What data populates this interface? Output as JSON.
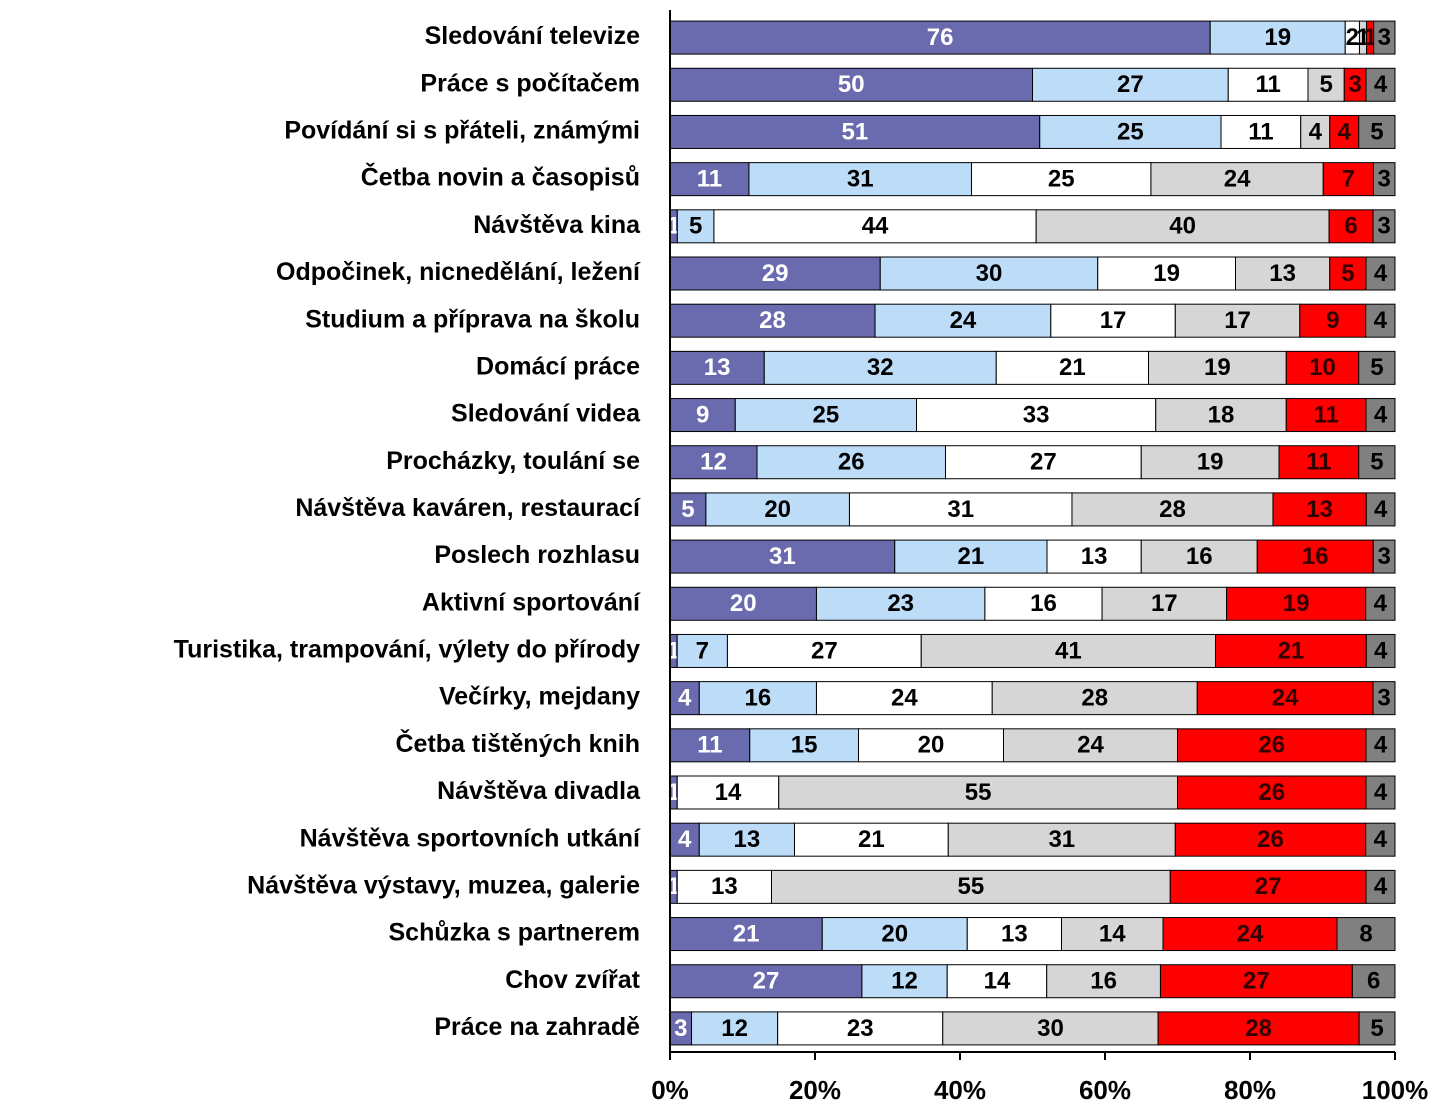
{
  "chart_data": {
    "type": "stacked-bar-100",
    "orientation": "horizontal",
    "categories": [
      "Sledování televize",
      "Práce s počítačem",
      "Povídání si s přáteli, známými",
      "Četba novin a časopisů",
      "Návštěva kina",
      "Odpočinek, nicnedělání, ležení",
      "Studium a  příprava na školu",
      "Domácí práce",
      "Sledování videa",
      "Procházky, toulání se",
      "Návštěva kaváren, restaurací",
      "Poslech rozhlasu",
      "Aktivní sportování",
      "Turistika, trampování, výlety do přírody",
      "Večírky, mejdany",
      "Četba tištěných knih",
      "Návštěva divadla",
      "Návštěva sportovních utkání",
      "Návštěva výstavy, muzea, galerie",
      "Schůzka s partnerem",
      "Chov zvířat",
      "Práce na zahradě"
    ],
    "series": [
      {
        "color": "#6a6aae",
        "label_color": "#ffffff",
        "values": [
          76,
          50,
          51,
          11,
          1,
          29,
          28,
          13,
          9,
          12,
          5,
          31,
          20,
          1,
          4,
          11,
          1,
          4,
          1,
          21,
          27,
          3
        ]
      },
      {
        "color": "#bcdcf8",
        "label_color": "#000000",
        "values": [
          19,
          27,
          25,
          31,
          5,
          30,
          24,
          32,
          25,
          26,
          20,
          21,
          23,
          7,
          16,
          15,
          0,
          13,
          0,
          20,
          12,
          12
        ]
      },
      {
        "color": "#ffffff",
        "label_color": "#000000",
        "values": [
          2,
          11,
          11,
          25,
          44,
          19,
          17,
          21,
          33,
          27,
          31,
          13,
          16,
          27,
          24,
          20,
          14,
          21,
          13,
          13,
          14,
          23
        ]
      },
      {
        "color": "#d6d6d6",
        "label_color": "#000000",
        "values": [
          1,
          5,
          4,
          24,
          40,
          13,
          17,
          19,
          18,
          19,
          28,
          16,
          17,
          41,
          28,
          24,
          55,
          31,
          55,
          14,
          16,
          30
        ]
      },
      {
        "color": "#ff0000",
        "label_color": "#330000",
        "values": [
          1,
          3,
          4,
          7,
          6,
          5,
          9,
          10,
          11,
          11,
          13,
          16,
          19,
          21,
          24,
          26,
          26,
          26,
          27,
          24,
          27,
          28
        ]
      },
      {
        "color": "#808080",
        "label_color": "#000000",
        "values": [
          3,
          4,
          5,
          3,
          3,
          4,
          4,
          5,
          4,
          5,
          4,
          3,
          4,
          4,
          3,
          4,
          4,
          4,
          4,
          8,
          6,
          5
        ]
      }
    ],
    "xlim": [
      0,
      100
    ],
    "xticks": [
      {
        "value": 0,
        "label": "0%"
      },
      {
        "value": 20,
        "label": "20%"
      },
      {
        "value": 40,
        "label": "40%"
      },
      {
        "value": 60,
        "label": "60%"
      },
      {
        "value": 80,
        "label": "80%"
      },
      {
        "value": 100,
        "label": "100%"
      }
    ]
  }
}
